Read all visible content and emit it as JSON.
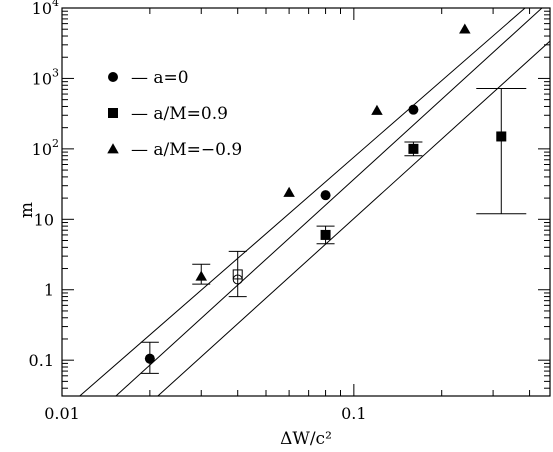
{
  "chart_data": {
    "type": "scatter",
    "xlabel": "ΔW/c²",
    "ylabel": "m",
    "x_scale": "log",
    "y_scale": "log",
    "xlim": [
      0.01,
      0.47
    ],
    "ylim": [
      0.031,
      10000
    ],
    "x_ticks": [
      {
        "value": 0.01,
        "label": "0.01"
      },
      {
        "value": 0.1,
        "label": "0.1"
      }
    ],
    "y_ticks": [
      {
        "value": 0.1,
        "label": "0.1"
      },
      {
        "value": 1,
        "label": "1"
      },
      {
        "value": 10,
        "label": "10"
      },
      {
        "value": 100,
        "label": "10",
        "sup": "2"
      },
      {
        "value": 1000,
        "label": "10",
        "sup": "3"
      },
      {
        "value": 10000,
        "label": "10",
        "sup": "4"
      }
    ],
    "legend": {
      "placement": "top-left",
      "entries": [
        {
          "marker": "circle",
          "label": "—  a=0"
        },
        {
          "marker": "square",
          "label": "—  a/M=0.9"
        },
        {
          "marker": "triangle",
          "label": "—  a/M=−0.9"
        }
      ]
    },
    "fit_lines": [
      {
        "marker": "triangle",
        "points": [
          [
            0.0115,
            0.031
          ],
          [
            0.386,
            10000
          ]
        ]
      },
      {
        "marker": "circle",
        "points": [
          [
            0.0153,
            0.031
          ],
          [
            0.441,
            10000
          ]
        ]
      },
      {
        "marker": "square",
        "points": [
          [
            0.0213,
            0.031
          ],
          [
            0.472,
            3450
          ]
        ]
      }
    ],
    "series": [
      {
        "marker": "circle",
        "filled": true,
        "points": [
          {
            "x": 0.02,
            "y": 0.105,
            "yerr": [
              0.065,
              0.18
            ]
          },
          {
            "x": 0.08,
            "y": 22
          },
          {
            "x": 0.16,
            "y": 360
          }
        ]
      },
      {
        "marker": "square",
        "filled": true,
        "points": [
          {
            "x": 0.08,
            "y": 6,
            "yerr": [
              4.5,
              8
            ]
          },
          {
            "x": 0.16,
            "y": 100,
            "yerr": [
              80,
              125
            ]
          },
          {
            "x": 0.32,
            "y": 150,
            "yerr": [
              12,
              720
            ]
          }
        ]
      },
      {
        "marker": "triangle",
        "filled": true,
        "points": [
          {
            "x": 0.03,
            "y": 1.55,
            "yerr": [
              1.2,
              2.3
            ]
          },
          {
            "x": 0.06,
            "y": 24
          },
          {
            "x": 0.12,
            "y": 350
          },
          {
            "x": 0.24,
            "y": 5000
          }
        ]
      },
      {
        "marker": "circle",
        "filled": false,
        "points": [
          {
            "x": 0.04,
            "y": 1.4,
            "yerr": [
              0.8,
              3.5
            ]
          }
        ]
      },
      {
        "marker": "square",
        "filled": false,
        "points": [
          {
            "x": 0.04,
            "y": 1.65
          }
        ]
      }
    ]
  }
}
